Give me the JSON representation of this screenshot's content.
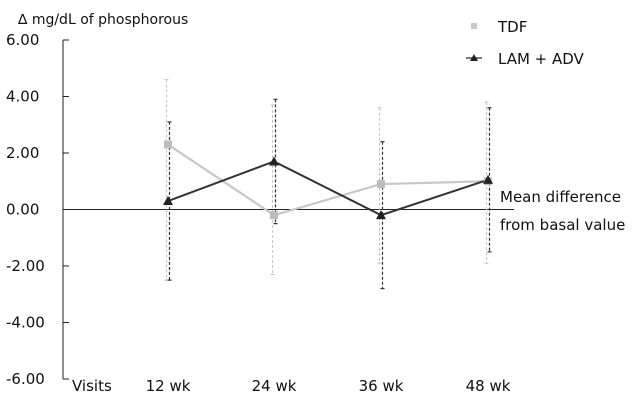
{
  "chart_data": {
    "type": "line",
    "title": "",
    "ylabel": "∆ mg/dL of phosphorous",
    "xlabel": "Visits",
    "categories": [
      "12 wk",
      "24 wk",
      "36 wk",
      "48 wk"
    ],
    "ylim": [
      -6.0,
      6.0
    ],
    "yticks": [
      "6.00",
      "4.00",
      "2.00",
      "0.00",
      "-2.00",
      "-4.00",
      "-6.00"
    ],
    "ytick_values": [
      6,
      4,
      2,
      0,
      -2,
      -4,
      -6
    ],
    "grid": false,
    "legend_position": "top-right",
    "series": [
      {
        "name": "TDF",
        "color": "#c8c8c8",
        "marker": "square",
        "values": [
          2.3,
          -0.2,
          0.9,
          1.0
        ],
        "error_low": [
          -2.5,
          -2.3,
          -1.9,
          -1.9
        ],
        "error_high": [
          4.6,
          3.7,
          3.6,
          3.8
        ]
      },
      {
        "name": "LAM + ADV",
        "color": "#333333",
        "marker": "triangle",
        "values": [
          0.3,
          1.7,
          -0.2,
          1.05
        ],
        "error_low": [
          -2.5,
          -0.5,
          -2.8,
          -1.5
        ],
        "error_high": [
          3.1,
          3.9,
          2.4,
          3.6
        ]
      }
    ],
    "reference_line": {
      "value": 0,
      "label_line1": "Mean difference",
      "label_line2": "from basal value"
    }
  }
}
